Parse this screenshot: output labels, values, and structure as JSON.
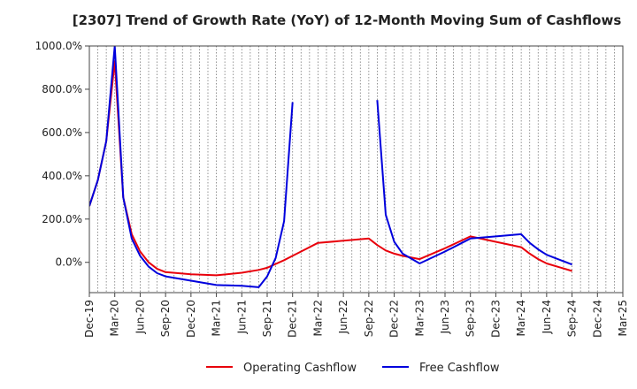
{
  "chart_data": {
    "type": "line",
    "title": "[2307]  Trend of Growth Rate (YoY) of 12-Month Moving Sum of Cashflows",
    "xlabel": "",
    "ylabel": "",
    "ylim": [
      -140,
      1000
    ],
    "yticks": [
      0,
      200,
      400,
      600,
      800,
      1000
    ],
    "ytick_labels": [
      "0.0%",
      "200.0%",
      "400.0%",
      "600.0%",
      "800.0%",
      "1000.0%"
    ],
    "xtick_labels": [
      "Dec-19",
      "Mar-20",
      "Jun-20",
      "Sep-20",
      "Dec-20",
      "Mar-21",
      "Jun-21",
      "Sep-21",
      "Dec-21",
      "Mar-22",
      "Jun-22",
      "Sep-22",
      "Dec-22",
      "Mar-23",
      "Jun-23",
      "Sep-23",
      "Dec-23",
      "Mar-24",
      "Jun-24",
      "Sep-24",
      "Dec-24",
      "Mar-25"
    ],
    "grid": "vertical dotted",
    "legend_position": "bottom",
    "series": [
      {
        "name": "Operating Cashflow",
        "color": "#e8000b",
        "points": [
          [
            "Dec-19",
            260
          ],
          [
            "Jan-20",
            380
          ],
          [
            "Feb-20",
            560
          ],
          [
            "Mar-20",
            930
          ],
          [
            "Apr-20",
            300
          ],
          [
            "May-20",
            130
          ],
          [
            "Jun-20",
            50
          ],
          [
            "Jul-20",
            0
          ],
          [
            "Aug-20",
            -30
          ],
          [
            "Sep-20",
            -45
          ],
          [
            "Dec-20",
            -55
          ],
          [
            "Mar-21",
            -60
          ],
          [
            "Jun-21",
            -48
          ],
          [
            "Aug-21",
            -35
          ],
          [
            "Sep-21",
            -25
          ],
          [
            "Nov-21",
            10
          ],
          [
            "Dec-21",
            30
          ],
          [
            "Jan-22",
            50
          ],
          [
            "Mar-22",
            90
          ],
          [
            "Jun-22",
            100
          ],
          [
            "Sep-22",
            110
          ],
          [
            "Oct-22",
            80
          ],
          [
            "Nov-22",
            55
          ],
          [
            "Dec-22",
            40
          ],
          [
            "Jan-23",
            30
          ],
          [
            "Mar-23",
            15
          ],
          [
            "Jun-23",
            65
          ],
          [
            "Sep-23",
            120
          ],
          [
            "Dec-23",
            95
          ],
          [
            "Mar-24",
            70
          ],
          [
            "Apr-24",
            40
          ],
          [
            "May-24",
            15
          ],
          [
            "Jun-24",
            -5
          ],
          [
            "Sep-24",
            -40
          ]
        ]
      },
      {
        "name": "Free Cashflow",
        "color": "#0000dd",
        "points": [
          [
            "Dec-19",
            260
          ],
          [
            "Jan-20",
            380
          ],
          [
            "Feb-20",
            560
          ],
          [
            "Mar-20",
            1000
          ],
          [
            "Apr-20",
            300
          ],
          [
            "May-20",
            110
          ],
          [
            "Jun-20",
            30
          ],
          [
            "Jul-20",
            -20
          ],
          [
            "Aug-20",
            -50
          ],
          [
            "Sep-20",
            -65
          ],
          [
            "Dec-20",
            -85
          ],
          [
            "Mar-21",
            -105
          ],
          [
            "Jun-21",
            -108
          ],
          [
            "Aug-21",
            -115
          ],
          [
            "Sep-21",
            -65
          ],
          [
            "Oct-21",
            20
          ],
          [
            "Nov-21",
            190
          ],
          [
            "Dec-21",
            740
          ],
          null,
          [
            "Oct-22",
            750
          ],
          [
            "Nov-22",
            220
          ],
          [
            "Dec-22",
            95
          ],
          [
            "Jan-23",
            40
          ],
          [
            "Mar-23",
            -5
          ],
          [
            "Jun-23",
            50
          ],
          [
            "Sep-23",
            110
          ],
          [
            "Dec-23",
            120
          ],
          [
            "Mar-24",
            130
          ],
          [
            "Apr-24",
            90
          ],
          [
            "May-24",
            60
          ],
          [
            "Jun-24",
            35
          ],
          [
            "Sep-24",
            -10
          ]
        ]
      }
    ]
  }
}
